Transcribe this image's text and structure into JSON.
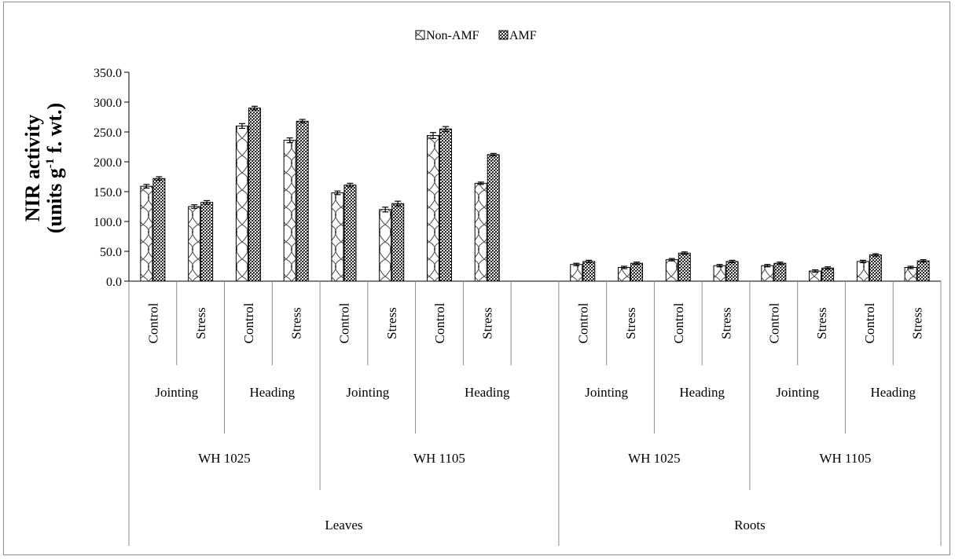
{
  "chart_data": {
    "type": "bar",
    "ylabel_line1": "NIR activity",
    "ylabel_line2_pre": "(units g",
    "ylabel_line2_sup": "-1",
    "ylabel_line2_post": " f. wt.)",
    "ylim": [
      0,
      350
    ],
    "ytick_step": 50,
    "ytick_labels": [
      "0.0",
      "50.0",
      "100.0",
      "150.0",
      "200.0",
      "250.0",
      "300.0",
      "350.0"
    ],
    "legend_position": "top-center",
    "grid": false,
    "series": [
      {
        "name": "Non-AMF",
        "pattern": "diagonal-wave",
        "values": [
          159,
          125,
          260,
          236,
          148,
          120,
          244,
          164,
          null,
          28,
          23,
          36,
          26,
          26,
          17,
          33,
          23
        ]
      },
      {
        "name": "AMF",
        "pattern": "dense-crosshatch",
        "values": [
          172,
          132,
          290,
          268,
          161,
          130,
          255,
          212,
          null,
          33,
          30,
          47,
          33,
          30,
          22,
          44,
          34
        ]
      }
    ],
    "errors": {
      "Non-AMF": [
        3,
        3,
        4,
        4,
        3,
        4,
        5,
        2,
        null,
        2,
        2,
        2,
        2,
        2,
        2,
        2,
        2
      ],
      "AMF": [
        3,
        3,
        3,
        3,
        3,
        4,
        4,
        2,
        null,
        2,
        2,
        2,
        2,
        2,
        2,
        2,
        2
      ]
    },
    "categories": [
      "Control",
      "Stress",
      "Control",
      "Stress",
      "Control",
      "Stress",
      "Control",
      "Stress",
      "",
      "Control",
      "Stress",
      "Control",
      "Stress",
      "Control",
      "Stress",
      "Control",
      "Stress"
    ],
    "stage_groups": [
      {
        "label": "Jointing",
        "start": 0,
        "span": 2
      },
      {
        "label": "Heading",
        "start": 2,
        "span": 2
      },
      {
        "label": "Jointing",
        "start": 4,
        "span": 2
      },
      {
        "label": "Heading",
        "start": 6,
        "span": 3
      },
      {
        "label": "Jointing",
        "start": 9,
        "span": 2
      },
      {
        "label": "Heading",
        "start": 11,
        "span": 2
      },
      {
        "label": "Jointing",
        "start": 13,
        "span": 2
      },
      {
        "label": "Heading",
        "start": 15,
        "span": 2
      }
    ],
    "variety_groups": [
      {
        "label": "WH 1025",
        "start": 0,
        "span": 4
      },
      {
        "label": "WH 1105",
        "start": 4,
        "span": 5
      },
      {
        "label": "WH 1025",
        "start": 9,
        "span": 4
      },
      {
        "label": "WH 1105",
        "start": 13,
        "span": 4
      }
    ],
    "tissue_groups": [
      {
        "label": "Leaves",
        "start": 0,
        "span": 9
      },
      {
        "label": "Roots",
        "start": 9,
        "span": 8
      }
    ]
  }
}
